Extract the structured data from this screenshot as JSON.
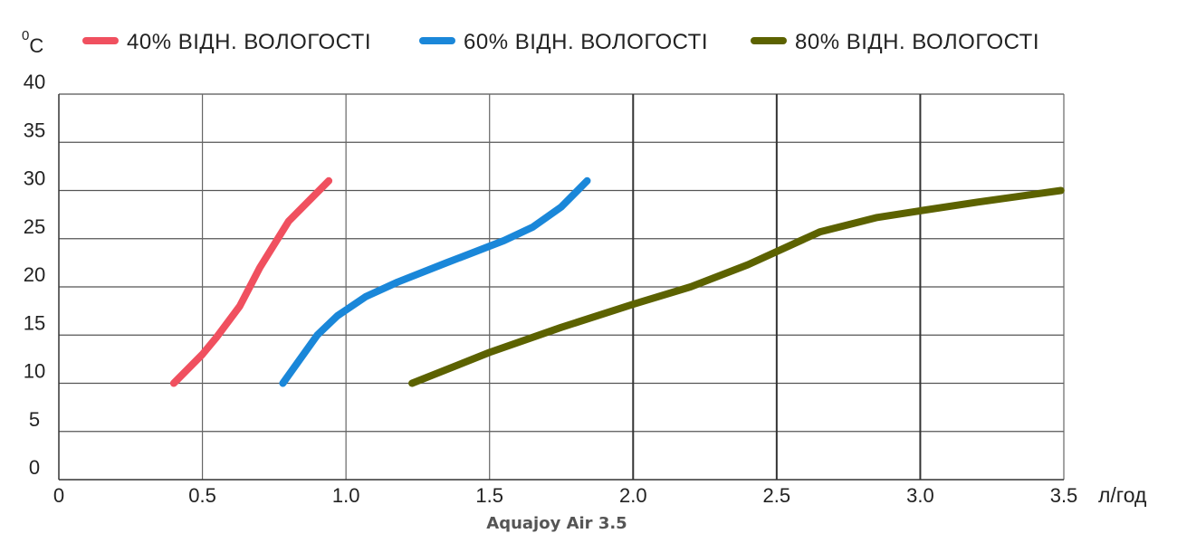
{
  "chart_data": {
    "type": "line",
    "ylabel_sup": "0",
    "ylabel_main": "C",
    "xlabel": "л/год",
    "caption": "Aquajoy Air 3.5",
    "xlim": [
      0,
      3.5
    ],
    "ylim": [
      0,
      40
    ],
    "x_ticks": [
      "0",
      "0.5",
      "1.0",
      "1.5",
      "2.0",
      "2.5",
      "3.0",
      "3.5"
    ],
    "x_tick_values": [
      0,
      0.5,
      1.0,
      1.5,
      2.0,
      2.5,
      3.0,
      3.5
    ],
    "y_ticks": [
      "0",
      "5",
      "10",
      "15",
      "20",
      "25",
      "30",
      "35",
      "40"
    ],
    "y_tick_values": [
      0,
      5,
      10,
      15,
      20,
      25,
      30,
      35,
      40
    ],
    "grid": true,
    "legend_position": "top",
    "series": [
      {
        "name": "40% ВІДН. ВОЛОГОСТІ",
        "color": "#f0505f",
        "points": [
          [
            0.4,
            10
          ],
          [
            0.5,
            13
          ],
          [
            0.55,
            14.8
          ],
          [
            0.63,
            18
          ],
          [
            0.7,
            22
          ],
          [
            0.8,
            26.8
          ],
          [
            0.94,
            31
          ]
        ]
      },
      {
        "name": "60% ВІДН. ВОЛОГОСТІ",
        "color": "#1a87d9",
        "points": [
          [
            0.78,
            10
          ],
          [
            0.9,
            15
          ],
          [
            0.97,
            17
          ],
          [
            1.07,
            19
          ],
          [
            1.18,
            20.5
          ],
          [
            1.35,
            22.5
          ],
          [
            1.55,
            24.8
          ],
          [
            1.65,
            26.2
          ],
          [
            1.75,
            28.3
          ],
          [
            1.84,
            31
          ]
        ]
      },
      {
        "name": "80% ВІДН. ВОЛОГОСТІ",
        "color": "#5c6200",
        "points": [
          [
            1.23,
            10
          ],
          [
            1.5,
            13.2
          ],
          [
            1.75,
            15.8
          ],
          [
            2.0,
            18.2
          ],
          [
            2.2,
            20
          ],
          [
            2.4,
            22.3
          ],
          [
            2.65,
            25.7
          ],
          [
            2.85,
            27.2
          ],
          [
            3.0,
            27.9
          ],
          [
            3.2,
            28.8
          ],
          [
            3.49,
            30
          ]
        ]
      }
    ]
  }
}
